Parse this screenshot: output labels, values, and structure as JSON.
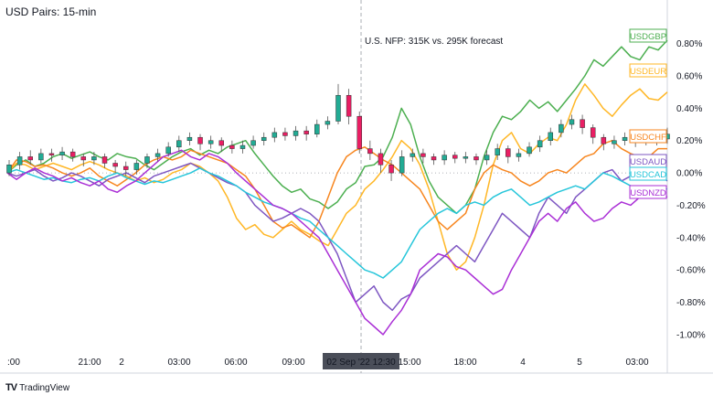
{
  "header": {
    "title": "USD Pairs: 15-min"
  },
  "annotation": {
    "text": "U.S. NFP: 315K vs. 295K forecast"
  },
  "footer": {
    "brand": "TradingView",
    "logo": "TV"
  },
  "crosshair": {
    "x_label": "02 Sep '22  12:30"
  },
  "chart_data": {
    "type": "line",
    "x_tick_labels": [
      ":00",
      "21:00",
      "2",
      "03:00",
      "06:00",
      "09:00",
      "15:00",
      "18:00",
      "4",
      "5",
      "03:00"
    ],
    "y_tick_labels": [
      "0.80%",
      "0.60%",
      "0.40%",
      "0.20%",
      "0.00%",
      "-0.20%",
      "-0.40%",
      "-0.60%",
      "-0.80%",
      "-1.00%"
    ],
    "ylim": [
      -1.08,
      0.9
    ],
    "grid": false,
    "series": [
      {
        "name": "USDGBP",
        "color": "#4caf50",
        "values": [
          0.0,
          0.05,
          0.08,
          0.04,
          0.06,
          0.1,
          0.12,
          0.09,
          0.11,
          0.13,
          0.1,
          0.08,
          0.12,
          0.1,
          0.09,
          0.05,
          0.02,
          0.06,
          0.1,
          0.13,
          0.15,
          0.11,
          0.14,
          0.12,
          0.16,
          0.18,
          0.2,
          0.12,
          0.05,
          -0.02,
          -0.08,
          -0.12,
          -0.1,
          -0.16,
          -0.18,
          -0.22,
          -0.18,
          -0.1,
          -0.06,
          0.04,
          0.05,
          0.1,
          0.22,
          0.4,
          0.3,
          0.1,
          -0.05,
          -0.15,
          -0.2,
          -0.25,
          -0.2,
          -0.1,
          0.1,
          0.25,
          0.35,
          0.33,
          0.38,
          0.45,
          0.4,
          0.44,
          0.38,
          0.45,
          0.52,
          0.6,
          0.7,
          0.66,
          0.72,
          0.78,
          0.72,
          0.7,
          0.78,
          0.76,
          0.82
        ]
      },
      {
        "name": "USDEUR",
        "color": "#ffb726",
        "values": [
          0.0,
          0.06,
          0.05,
          0.02,
          0.04,
          0.06,
          0.04,
          0.02,
          0.05,
          0.07,
          0.05,
          0.02,
          0.0,
          -0.02,
          -0.05,
          -0.03,
          -0.06,
          -0.04,
          0.0,
          0.02,
          0.06,
          0.04,
          0.0,
          -0.05,
          -0.15,
          -0.28,
          -0.35,
          -0.32,
          -0.38,
          -0.4,
          -0.35,
          -0.3,
          -0.35,
          -0.38,
          -0.42,
          -0.45,
          -0.35,
          -0.25,
          -0.2,
          -0.1,
          -0.05,
          0.02,
          0.1,
          0.2,
          0.15,
          0.05,
          -0.1,
          -0.3,
          -0.5,
          -0.6,
          -0.55,
          -0.4,
          -0.2,
          0.05,
          0.2,
          0.25,
          0.15,
          0.12,
          0.18,
          0.22,
          0.2,
          0.3,
          0.45,
          0.55,
          0.48,
          0.4,
          0.35,
          0.42,
          0.48,
          0.52,
          0.46,
          0.45,
          0.5
        ]
      },
      {
        "name": "USDCHF",
        "color": "#f7861f",
        "values": [
          0.0,
          0.08,
          0.07,
          0.04,
          0.05,
          0.03,
          0.0,
          -0.02,
          0.0,
          0.03,
          -0.02,
          -0.05,
          -0.08,
          -0.04,
          0.0,
          0.05,
          0.08,
          0.1,
          0.08,
          0.1,
          0.14,
          0.12,
          0.1,
          0.08,
          0.06,
          0.02,
          -0.02,
          -0.1,
          -0.2,
          -0.3,
          -0.34,
          -0.32,
          -0.36,
          -0.4,
          -0.3,
          -0.15,
          0.0,
          0.1,
          0.14,
          0.16,
          0.12,
          0.08,
          0.05,
          0.0,
          -0.05,
          -0.1,
          -0.2,
          -0.3,
          -0.35,
          -0.3,
          -0.25,
          -0.1,
          0.0,
          0.05,
          0.02,
          0.0,
          -0.05,
          -0.08,
          -0.05,
          0.0,
          0.02,
          0.0,
          0.05,
          0.1,
          0.12,
          0.18,
          0.2,
          0.15,
          0.12,
          0.1,
          0.1,
          0.15,
          0.15
        ]
      },
      {
        "name": "USDAUD",
        "color": "#7e57c2",
        "values": [
          0.0,
          -0.02,
          0.0,
          0.02,
          -0.02,
          -0.05,
          -0.03,
          0.0,
          -0.02,
          -0.05,
          -0.08,
          -0.04,
          -0.02,
          0.0,
          -0.03,
          -0.06,
          -0.02,
          0.0,
          0.02,
          0.04,
          0.06,
          0.03,
          0.0,
          -0.03,
          -0.06,
          -0.08,
          -0.12,
          -0.2,
          -0.25,
          -0.3,
          -0.28,
          -0.25,
          -0.22,
          -0.25,
          -0.3,
          -0.4,
          -0.5,
          -0.65,
          -0.8,
          -0.75,
          -0.7,
          -0.8,
          -0.85,
          -0.78,
          -0.75,
          -0.65,
          -0.6,
          -0.55,
          -0.5,
          -0.45,
          -0.5,
          -0.55,
          -0.45,
          -0.35,
          -0.25,
          -0.3,
          -0.35,
          -0.4,
          -0.25,
          -0.15,
          -0.2,
          -0.25,
          -0.15,
          -0.1,
          -0.05,
          0.0,
          0.02,
          -0.05,
          -0.02,
          0.0,
          0.02,
          0.0,
          -0.05
        ]
      },
      {
        "name": "USDCAD",
        "color": "#26c6da",
        "values": [
          0.0,
          0.02,
          0.0,
          -0.02,
          -0.04,
          -0.03,
          -0.05,
          -0.06,
          -0.04,
          -0.03,
          -0.05,
          -0.02,
          0.0,
          -0.03,
          -0.05,
          -0.07,
          -0.05,
          -0.06,
          -0.04,
          -0.02,
          0.0,
          0.03,
          0.0,
          -0.02,
          -0.05,
          -0.08,
          -0.12,
          -0.15,
          -0.18,
          -0.2,
          -0.22,
          -0.25,
          -0.28,
          -0.3,
          -0.35,
          -0.4,
          -0.45,
          -0.5,
          -0.55,
          -0.6,
          -0.62,
          -0.65,
          -0.6,
          -0.55,
          -0.45,
          -0.35,
          -0.3,
          -0.25,
          -0.22,
          -0.25,
          -0.2,
          -0.18,
          -0.2,
          -0.15,
          -0.12,
          -0.1,
          -0.15,
          -0.2,
          -0.18,
          -0.15,
          -0.12,
          -0.1,
          -0.08,
          -0.1,
          -0.05,
          0.0,
          -0.02,
          -0.05,
          -0.08,
          -0.1,
          -0.12,
          -0.08,
          -0.1
        ]
      },
      {
        "name": "USDNZD",
        "color": "#aa2fd6",
        "values": [
          0.0,
          -0.04,
          0.0,
          0.03,
          0.0,
          -0.02,
          -0.05,
          -0.03,
          -0.06,
          -0.08,
          -0.05,
          -0.1,
          -0.12,
          -0.08,
          -0.05,
          0.0,
          0.05,
          0.1,
          0.12,
          0.14,
          0.1,
          0.08,
          0.12,
          0.1,
          0.06,
          0.0,
          -0.05,
          -0.1,
          -0.15,
          -0.2,
          -0.22,
          -0.25,
          -0.3,
          -0.35,
          -0.4,
          -0.5,
          -0.6,
          -0.7,
          -0.8,
          -0.9,
          -0.95,
          -1.0,
          -0.92,
          -0.85,
          -0.75,
          -0.6,
          -0.55,
          -0.5,
          -0.52,
          -0.58,
          -0.6,
          -0.65,
          -0.7,
          -0.75,
          -0.72,
          -0.6,
          -0.5,
          -0.4,
          -0.3,
          -0.25,
          -0.3,
          -0.22,
          -0.18,
          -0.25,
          -0.3,
          -0.28,
          -0.22,
          -0.18,
          -0.2,
          -0.15,
          -0.1,
          -0.12,
          -0.15
        ]
      }
    ],
    "candles": [
      [
        0.0,
        0.05,
        -0.02,
        0.08
      ],
      [
        0.05,
        0.1,
        0.02,
        0.13
      ],
      [
        0.1,
        0.08,
        0.05,
        0.14
      ],
      [
        0.08,
        0.12,
        0.06,
        0.15
      ],
      [
        0.12,
        0.11,
        0.07,
        0.15
      ],
      [
        0.11,
        0.13,
        0.08,
        0.16
      ],
      [
        0.13,
        0.1,
        0.07,
        0.15
      ],
      [
        0.1,
        0.08,
        0.04,
        0.12
      ],
      [
        0.08,
        0.1,
        0.05,
        0.13
      ],
      [
        0.1,
        0.06,
        0.03,
        0.12
      ],
      [
        0.06,
        0.04,
        0.0,
        0.08
      ],
      [
        0.04,
        0.02,
        -0.02,
        0.07
      ],
      [
        0.02,
        0.06,
        -0.01,
        0.08
      ],
      [
        0.06,
        0.1,
        0.03,
        0.12
      ],
      [
        0.1,
        0.12,
        0.07,
        0.15
      ],
      [
        0.12,
        0.16,
        0.1,
        0.19
      ],
      [
        0.16,
        0.2,
        0.13,
        0.23
      ],
      [
        0.2,
        0.22,
        0.17,
        0.25
      ],
      [
        0.22,
        0.18,
        0.14,
        0.24
      ],
      [
        0.18,
        0.2,
        0.15,
        0.23
      ],
      [
        0.2,
        0.17,
        0.13,
        0.22
      ],
      [
        0.17,
        0.15,
        0.12,
        0.2
      ],
      [
        0.15,
        0.17,
        0.12,
        0.2
      ],
      [
        0.17,
        0.2,
        0.15,
        0.23
      ],
      [
        0.2,
        0.22,
        0.17,
        0.25
      ],
      [
        0.22,
        0.25,
        0.19,
        0.28
      ],
      [
        0.25,
        0.23,
        0.2,
        0.28
      ],
      [
        0.23,
        0.26,
        0.2,
        0.29
      ],
      [
        0.26,
        0.24,
        0.2,
        0.29
      ],
      [
        0.24,
        0.3,
        0.22,
        0.33
      ],
      [
        0.3,
        0.32,
        0.27,
        0.35
      ],
      [
        0.32,
        0.48,
        0.3,
        0.55
      ],
      [
        0.48,
        0.35,
        0.3,
        0.52
      ],
      [
        0.35,
        0.15,
        0.12,
        0.38
      ],
      [
        0.15,
        0.12,
        0.08,
        0.2
      ],
      [
        0.12,
        0.05,
        0.0,
        0.15
      ],
      [
        0.05,
        0.0,
        -0.05,
        0.08
      ],
      [
        0.0,
        0.1,
        -0.02,
        0.14
      ],
      [
        0.1,
        0.12,
        0.07,
        0.15
      ],
      [
        0.12,
        0.1,
        0.06,
        0.15
      ],
      [
        0.1,
        0.08,
        0.05,
        0.12
      ],
      [
        0.08,
        0.11,
        0.05,
        0.14
      ],
      [
        0.11,
        0.09,
        0.06,
        0.13
      ],
      [
        0.09,
        0.1,
        0.06,
        0.13
      ],
      [
        0.1,
        0.08,
        0.05,
        0.12
      ],
      [
        0.08,
        0.11,
        0.05,
        0.14
      ],
      [
        0.11,
        0.15,
        0.08,
        0.18
      ],
      [
        0.15,
        0.1,
        0.06,
        0.17
      ],
      [
        0.1,
        0.12,
        0.07,
        0.15
      ],
      [
        0.12,
        0.16,
        0.1,
        0.19
      ],
      [
        0.16,
        0.2,
        0.13,
        0.23
      ],
      [
        0.2,
        0.25,
        0.17,
        0.28
      ],
      [
        0.25,
        0.3,
        0.22,
        0.33
      ],
      [
        0.3,
        0.33,
        0.27,
        0.36
      ],
      [
        0.33,
        0.28,
        0.24,
        0.36
      ],
      [
        0.28,
        0.22,
        0.18,
        0.3
      ],
      [
        0.22,
        0.18,
        0.14,
        0.24
      ],
      [
        0.18,
        0.2,
        0.15,
        0.23
      ],
      [
        0.2,
        0.22,
        0.17,
        0.25
      ],
      [
        0.22,
        0.2,
        0.16,
        0.25
      ],
      [
        0.2,
        0.23,
        0.17,
        0.26
      ],
      [
        0.23,
        0.21,
        0.17,
        0.26
      ],
      [
        0.21,
        0.24,
        0.18,
        0.28
      ]
    ]
  }
}
